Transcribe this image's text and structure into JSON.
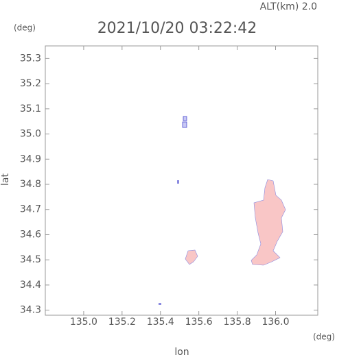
{
  "header": {
    "altitude": "ALT(km) 2.0",
    "y_unit": "(deg)",
    "x_unit": "(deg)"
  },
  "chart_data": {
    "type": "map",
    "title": "2021/10/20 03:22:42",
    "x_label": "lon",
    "y_label": "lat",
    "xlim": [
      134.8,
      136.22
    ],
    "ylim": [
      34.28,
      35.35
    ],
    "xticks": [
      {
        "value": 135,
        "label": "135.0"
      },
      135.2,
      135.4,
      135.6,
      135.8,
      {
        "value": 136,
        "label": "136.0"
      }
    ],
    "yticks": [
      34.3,
      34.4,
      34.5,
      34.6,
      34.7,
      34.8,
      34.9,
      {
        "value": 35,
        "label": "35.0"
      },
      35.1,
      35.2,
      35.3
    ],
    "color": "#f9c6c6"
  }
}
